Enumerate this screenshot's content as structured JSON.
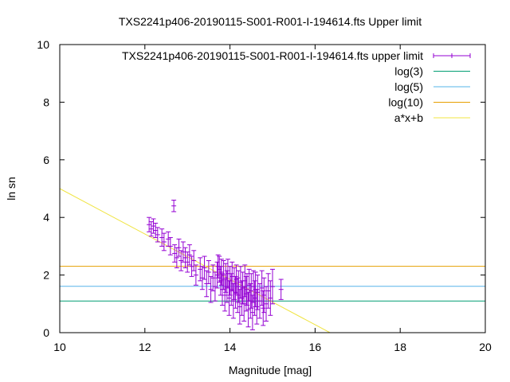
{
  "chart_data": {
    "type": "scatter",
    "title": "TXS2241p406-20190115-S001-R001-I-194614.fts Upper limit",
    "xlabel": "Magnitude [mag]",
    "ylabel": "ln sn",
    "xlim": [
      10,
      20
    ],
    "ylim": [
      0,
      10
    ],
    "x_ticks": [
      "10",
      "12",
      "14",
      "16",
      "18",
      "20"
    ],
    "y_ticks": [
      "0",
      "2",
      "4",
      "6",
      "8",
      "10"
    ],
    "grid": false,
    "legend_position": "top-right",
    "series": [
      {
        "name": "TXS2241p406-20190115-S001-R001-I-194614.fts upper limit",
        "kind": "errorbars",
        "color": "#9400d3",
        "points": [
          [
            12.1,
            3.75,
            0.25
          ],
          [
            12.15,
            3.6,
            0.25
          ],
          [
            12.2,
            3.7,
            0.25
          ],
          [
            12.25,
            3.55,
            0.25
          ],
          [
            12.3,
            3.4,
            0.25
          ],
          [
            12.4,
            3.3,
            0.3
          ],
          [
            12.45,
            3.15,
            0.3
          ],
          [
            12.55,
            3.25,
            0.25
          ],
          [
            12.6,
            3.0,
            0.3
          ],
          [
            12.68,
            4.4,
            0.2
          ],
          [
            12.7,
            2.75,
            0.3
          ],
          [
            12.75,
            2.6,
            0.35
          ],
          [
            12.8,
            2.95,
            0.3
          ],
          [
            12.85,
            2.5,
            0.35
          ],
          [
            12.9,
            2.8,
            0.35
          ],
          [
            12.95,
            2.6,
            0.35
          ],
          [
            13.0,
            2.45,
            0.35
          ],
          [
            13.05,
            2.7,
            0.35
          ],
          [
            13.1,
            2.3,
            0.35
          ],
          [
            13.15,
            2.5,
            0.35
          ],
          [
            13.2,
            2.0,
            0.35
          ],
          [
            13.3,
            2.2,
            0.4
          ],
          [
            13.35,
            1.9,
            0.4
          ],
          [
            13.4,
            2.25,
            0.4
          ],
          [
            13.45,
            1.7,
            0.45
          ],
          [
            13.5,
            2.1,
            0.4
          ],
          [
            13.55,
            1.5,
            0.45
          ],
          [
            13.6,
            1.9,
            0.45
          ],
          [
            13.65,
            1.6,
            0.5
          ],
          [
            13.7,
            2.0,
            0.45
          ],
          [
            13.72,
            2.3,
            0.4
          ],
          [
            13.75,
            2.2,
            0.45
          ],
          [
            13.78,
            1.8,
            0.5
          ],
          [
            13.8,
            2.1,
            0.45
          ],
          [
            13.82,
            1.5,
            0.55
          ],
          [
            13.85,
            2.0,
            0.5
          ],
          [
            13.88,
            1.3,
            0.55
          ],
          [
            13.9,
            1.9,
            0.5
          ],
          [
            13.93,
            1.6,
            0.55
          ],
          [
            13.95,
            2.05,
            0.5
          ],
          [
            13.98,
            1.2,
            0.6
          ],
          [
            14.0,
            1.8,
            0.5
          ],
          [
            14.03,
            1.5,
            0.55
          ],
          [
            14.05,
            1.95,
            0.5
          ],
          [
            14.08,
            1.1,
            0.6
          ],
          [
            14.1,
            1.7,
            0.55
          ],
          [
            14.13,
            1.4,
            0.55
          ],
          [
            14.15,
            1.85,
            0.5
          ],
          [
            14.18,
            1.3,
            0.6
          ],
          [
            14.2,
            1.6,
            0.55
          ],
          [
            14.23,
            0.9,
            0.6
          ],
          [
            14.25,
            1.75,
            0.55
          ],
          [
            14.28,
            1.2,
            0.6
          ],
          [
            14.3,
            1.55,
            0.55
          ],
          [
            14.33,
            1.0,
            0.6
          ],
          [
            14.35,
            1.8,
            0.55
          ],
          [
            14.38,
            1.35,
            0.6
          ],
          [
            14.4,
            1.5,
            0.55
          ],
          [
            14.43,
            0.8,
            0.6
          ],
          [
            14.45,
            1.65,
            0.55
          ],
          [
            14.48,
            1.1,
            0.6
          ],
          [
            14.5,
            1.45,
            0.6
          ],
          [
            14.53,
            0.7,
            0.6
          ],
          [
            14.55,
            1.6,
            0.55
          ],
          [
            14.58,
            1.2,
            0.6
          ],
          [
            14.6,
            1.5,
            0.6
          ],
          [
            14.63,
            0.9,
            0.6
          ],
          [
            14.65,
            1.4,
            0.6
          ],
          [
            14.7,
            1.1,
            0.6
          ],
          [
            14.75,
            1.55,
            0.6
          ],
          [
            14.78,
            0.85,
            0.6
          ],
          [
            14.8,
            1.3,
            0.6
          ],
          [
            14.85,
            1.0,
            0.6
          ],
          [
            14.9,
            1.45,
            0.6
          ],
          [
            14.95,
            1.2,
            0.6
          ],
          [
            15.0,
            1.6,
            0.6
          ],
          [
            15.2,
            1.5,
            0.35
          ]
        ]
      },
      {
        "name": "log(3)",
        "kind": "hline",
        "y": 1.0986,
        "color": "#009e73"
      },
      {
        "name": "log(5)",
        "kind": "hline",
        "y": 1.6094,
        "color": "#56b4e9"
      },
      {
        "name": "log(10)",
        "kind": "hline",
        "y": 2.3026,
        "color": "#e69f00"
      },
      {
        "name": "a*x+b",
        "kind": "line",
        "x": [
          10,
          16.35
        ],
        "y": [
          5.0,
          0
        ],
        "color": "#f0e442"
      }
    ]
  }
}
